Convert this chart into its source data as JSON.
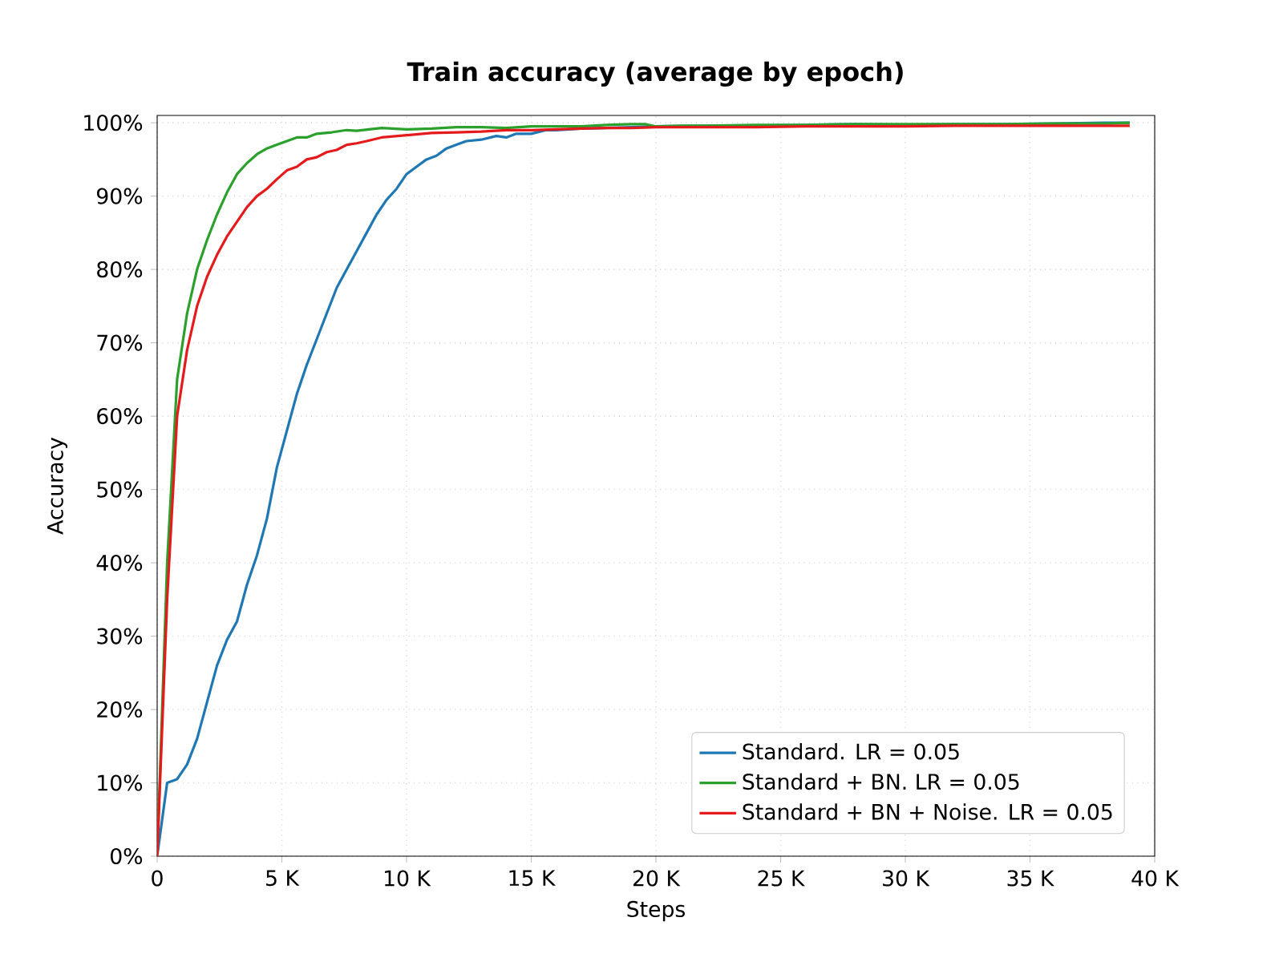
{
  "chart_data": {
    "type": "line",
    "title": "Train accuracy (average by epoch)",
    "xlabel": "Steps",
    "ylabel": "Accuracy",
    "xlim": [
      0,
      40000
    ],
    "ylim": [
      0,
      101
    ],
    "xticks": [
      0,
      {
        "value": 5000,
        "label": "5 K"
      },
      {
        "value": 10000,
        "label": "10 K"
      },
      {
        "value": 15000,
        "label": "15 K"
      },
      {
        "value": 20000,
        "label": "20 K"
      },
      {
        "value": 25000,
        "label": "25 K"
      },
      {
        "value": 30000,
        "label": "30 K"
      },
      {
        "value": 35000,
        "label": "35 K"
      },
      {
        "value": 40000,
        "label": "40 K"
      }
    ],
    "yticks": [
      {
        "value": 0,
        "label": "0%"
      },
      {
        "value": 10,
        "label": "10%"
      },
      {
        "value": 20,
        "label": "20%"
      },
      {
        "value": 30,
        "label": "30%"
      },
      {
        "value": 40,
        "label": "40%"
      },
      {
        "value": 50,
        "label": "50%"
      },
      {
        "value": 60,
        "label": "60%"
      },
      {
        "value": 70,
        "label": "70%"
      },
      {
        "value": 80,
        "label": "80%"
      },
      {
        "value": 90,
        "label": "90%"
      },
      {
        "value": 100,
        "label": "100%"
      }
    ],
    "grid": true,
    "legend": "bottom right",
    "series": [
      {
        "name": "Standard. LR = 0.05",
        "color": "#1f77b4",
        "x": [
          0,
          400,
          800,
          1200,
          1600,
          2000,
          2400,
          2800,
          3200,
          3600,
          4000,
          4400,
          4800,
          5200,
          5600,
          6000,
          6400,
          6800,
          7200,
          7600,
          8000,
          8400,
          8800,
          9200,
          9600,
          10000,
          10400,
          10800,
          11200,
          11600,
          12000,
          12400,
          13000,
          13600,
          14000,
          14400,
          15000,
          15600,
          16000,
          17000,
          18000,
          19000,
          20000,
          22000,
          24000,
          26000,
          28000,
          30000,
          32000,
          34000,
          36000,
          38000,
          39000
        ],
        "values": [
          0,
          10,
          10.5,
          12.5,
          16,
          21,
          26,
          29.5,
          32,
          37,
          41,
          46,
          53,
          58,
          63,
          67,
          70.5,
          74,
          77.5,
          80,
          82.5,
          85,
          87.5,
          89.5,
          91,
          93,
          94,
          95,
          95.5,
          96.5,
          97,
          97.5,
          97.7,
          98.2,
          98,
          98.5,
          98.5,
          99,
          99,
          99.2,
          99.3,
          99.4,
          99.5,
          99.6,
          99.6,
          99.7,
          99.8,
          99.7,
          99.8,
          99.8,
          99.9,
          100,
          100
        ]
      },
      {
        "name": "Standard + BN. LR = 0.05",
        "color": "#2ca02c",
        "x": [
          0,
          400,
          800,
          1200,
          1600,
          2000,
          2400,
          2800,
          3200,
          3600,
          4000,
          4400,
          4800,
          5200,
          5600,
          6000,
          6400,
          7000,
          7600,
          8000,
          9000,
          10000,
          11000,
          12000,
          13000,
          14000,
          15000,
          16000,
          17000,
          18000,
          19000,
          19600,
          20000,
          21000,
          22000,
          24000,
          26000,
          28000,
          30000,
          32000,
          34000,
          36000,
          38000,
          39000
        ],
        "values": [
          0,
          40,
          65,
          74,
          80,
          84,
          87.5,
          90.5,
          93,
          94.5,
          95.7,
          96.5,
          97,
          97.5,
          98,
          98,
          98.5,
          98.7,
          99,
          98.9,
          99.3,
          99.1,
          99.2,
          99.4,
          99.4,
          99.3,
          99.5,
          99.5,
          99.5,
          99.7,
          99.8,
          99.8,
          99.5,
          99.6,
          99.6,
          99.7,
          99.7,
          99.8,
          99.8,
          99.8,
          99.8,
          99.9,
          99.9,
          100
        ]
      },
      {
        "name": "Standard + BN + Noise. LR = 0.05",
        "color": "#e41a1c",
        "x": [
          0,
          400,
          800,
          1200,
          1600,
          2000,
          2400,
          2800,
          3200,
          3600,
          4000,
          4400,
          4800,
          5200,
          5600,
          6000,
          6400,
          6800,
          7200,
          7600,
          8000,
          8400,
          9000,
          10000,
          11000,
          12000,
          13000,
          14000,
          15000,
          16000,
          17000,
          18000,
          19000,
          20000,
          22000,
          24000,
          26000,
          28000,
          30000,
          32000,
          34000,
          36000,
          38000,
          39000
        ],
        "values": [
          0,
          35,
          60,
          69,
          75,
          79,
          82,
          84.5,
          86.5,
          88.5,
          90,
          91,
          92.3,
          93.5,
          94,
          95,
          95.3,
          96,
          96.3,
          97,
          97.2,
          97.5,
          98,
          98.3,
          98.6,
          98.7,
          98.8,
          99,
          99,
          99.1,
          99.2,
          99.3,
          99.3,
          99.4,
          99.4,
          99.4,
          99.5,
          99.5,
          99.5,
          99.6,
          99.6,
          99.6,
          99.6,
          99.6
        ]
      }
    ]
  }
}
